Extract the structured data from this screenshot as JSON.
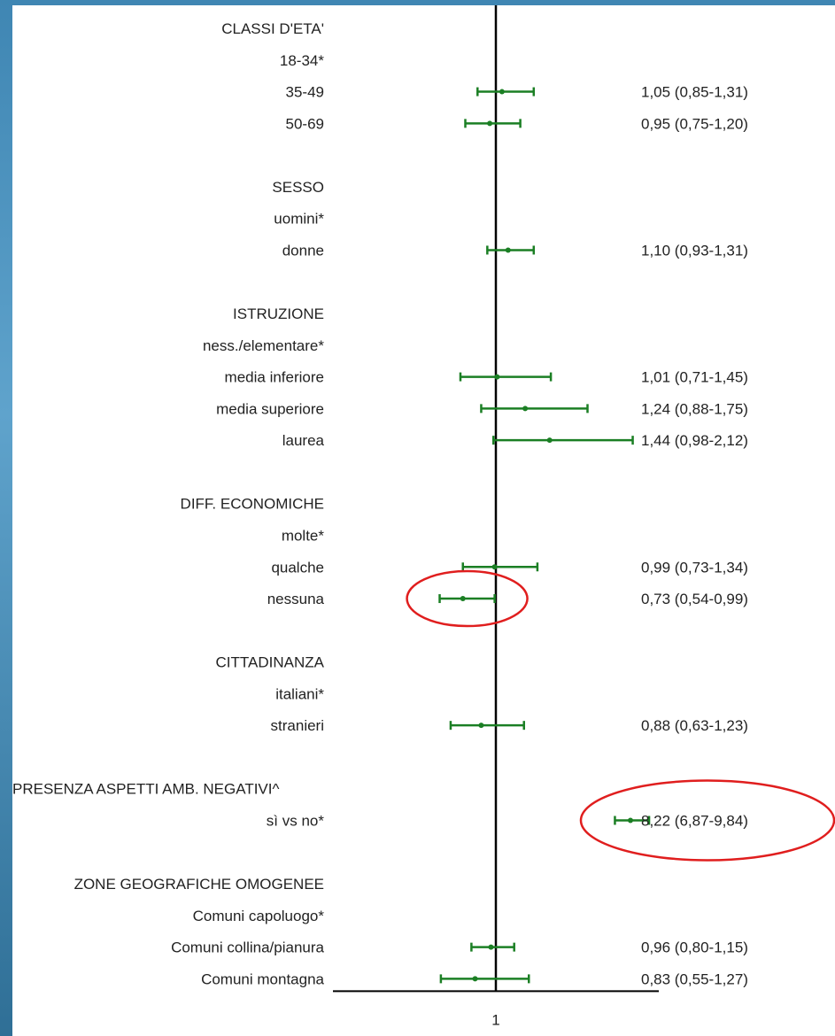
{
  "colors": {
    "ci": "#1b7f24",
    "ref_line": "#000000",
    "highlight": "#e01e1e",
    "text": "#222222"
  },
  "chart_data": {
    "type": "forest",
    "reference_value": 1,
    "x_tick_label": "1",
    "rows": [
      {
        "label": "CLASSI D'ETA'",
        "header": true
      },
      {
        "label": "18-34*"
      },
      {
        "label": "35-49",
        "or": 1.05,
        "lo": 0.85,
        "hi": 1.31,
        "text": "1,05 (0,85-1,31)"
      },
      {
        "label": "50-69",
        "or": 0.95,
        "lo": 0.75,
        "hi": 1.2,
        "text": "0,95 (0,75-1,20)"
      },
      {
        "label": "",
        "spacer": true
      },
      {
        "label": "SESSO",
        "header": true
      },
      {
        "label": "uomini*"
      },
      {
        "label": "donne",
        "or": 1.1,
        "lo": 0.93,
        "hi": 1.31,
        "text": "1,10 (0,93-1,31)"
      },
      {
        "label": "",
        "spacer": true
      },
      {
        "label": "ISTRUZIONE",
        "header": true
      },
      {
        "label": "ness./elementare*"
      },
      {
        "label": "media inferiore",
        "or": 1.01,
        "lo": 0.71,
        "hi": 1.45,
        "text": "1,01 (0,71-1,45)"
      },
      {
        "label": "media superiore",
        "or": 1.24,
        "lo": 0.88,
        "hi": 1.75,
        "text": "1,24 (0,88-1,75)"
      },
      {
        "label": "laurea",
        "or": 1.44,
        "lo": 0.98,
        "hi": 2.12,
        "text": "1,44 (0,98-2,12)"
      },
      {
        "label": "",
        "spacer": true
      },
      {
        "label": "DIFF. ECONOMICHE",
        "header": true
      },
      {
        "label": "molte*"
      },
      {
        "label": "qualche",
        "or": 0.99,
        "lo": 0.73,
        "hi": 1.34,
        "text": "0,99 (0,73-1,34)"
      },
      {
        "label": "nessuna",
        "or": 0.73,
        "lo": 0.54,
        "hi": 0.99,
        "text": "0,73 (0,54-0,99)",
        "highlight": "ci"
      },
      {
        "label": "",
        "spacer": true
      },
      {
        "label": "CITTADINANZA",
        "header": true
      },
      {
        "label": "italiani*"
      },
      {
        "label": "stranieri",
        "or": 0.88,
        "lo": 0.63,
        "hi": 1.23,
        "text": "0,88 (0,63-1,23)"
      },
      {
        "label": "",
        "spacer": true
      },
      {
        "label": "PRESENZA ASPETTI AMB. NEGATIVI^",
        "header": true
      },
      {
        "label": "sì vs no*",
        "or": 8.22,
        "lo": 6.87,
        "hi": 9.84,
        "text": "8,22 (6,87-9,84)",
        "highlight": "text",
        "off_scale": true
      },
      {
        "label": "",
        "spacer": true
      },
      {
        "label": "ZONE GEOGRAFICHE OMOGENEE",
        "header": true
      },
      {
        "label": "Comuni capoluogo*"
      },
      {
        "label": "Comuni collina/pianura",
        "or": 0.96,
        "lo": 0.8,
        "hi": 1.15,
        "text": "0,96 (0,80-1,15)"
      },
      {
        "label": "Comuni montagna",
        "or": 0.83,
        "lo": 0.55,
        "hi": 1.27,
        "text": "0,83 (0,55-1,27)"
      }
    ]
  }
}
